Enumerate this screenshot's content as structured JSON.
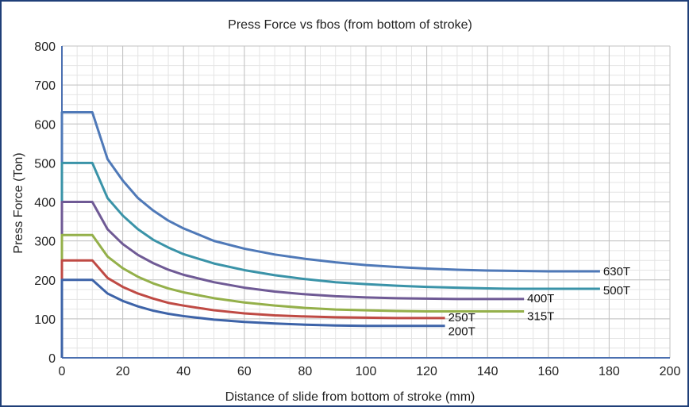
{
  "chart_data": {
    "type": "line",
    "title": "Press Force vs fbos (from bottom of stroke)",
    "xlabel": "Distance of slide from bottom of stroke (mm)",
    "ylabel": "Press Force (Ton)",
    "xlim": [
      0,
      200
    ],
    "ylim": [
      0,
      800
    ],
    "xticks": [
      0,
      20,
      40,
      60,
      80,
      100,
      120,
      140,
      160,
      180,
      200
    ],
    "yticks": [
      0,
      100,
      200,
      300,
      400,
      500,
      600,
      700,
      800
    ],
    "grid": true,
    "legend": "inline-end-labels",
    "series": [
      {
        "name": "630T",
        "color": "#4f79b8",
        "x": [
          0,
          10,
          15,
          20,
          25,
          30,
          35,
          40,
          50,
          60,
          70,
          80,
          90,
          100,
          110,
          120,
          130,
          140,
          150,
          160,
          170,
          177
        ],
        "y": [
          630,
          630,
          510,
          455,
          410,
          378,
          352,
          332,
          300,
          280,
          265,
          254,
          245,
          238,
          233,
          229,
          226,
          224,
          223,
          222,
          222,
          222
        ]
      },
      {
        "name": "500T",
        "color": "#3a93a8",
        "x": [
          0,
          10,
          15,
          20,
          25,
          30,
          35,
          40,
          50,
          60,
          70,
          80,
          90,
          100,
          110,
          120,
          130,
          140,
          150,
          160,
          170,
          177
        ],
        "y": [
          500,
          500,
          410,
          365,
          330,
          303,
          283,
          266,
          242,
          225,
          212,
          202,
          194,
          189,
          185,
          182,
          180,
          178,
          177,
          177,
          177,
          177
        ]
      },
      {
        "name": "400T",
        "color": "#6f5a95",
        "x": [
          0,
          10,
          15,
          20,
          25,
          30,
          35,
          40,
          50,
          60,
          70,
          80,
          90,
          100,
          110,
          120,
          130,
          140,
          152
        ],
        "y": [
          400,
          400,
          330,
          292,
          264,
          243,
          226,
          213,
          194,
          180,
          170,
          163,
          158,
          155,
          153,
          152,
          151,
          151,
          151
        ]
      },
      {
        "name": "315T",
        "color": "#94b04a",
        "x": [
          0,
          10,
          15,
          20,
          25,
          30,
          35,
          40,
          50,
          60,
          70,
          80,
          90,
          100,
          110,
          120,
          130,
          140,
          152
        ],
        "y": [
          315,
          315,
          260,
          230,
          208,
          191,
          178,
          168,
          153,
          142,
          134,
          128,
          124,
          122,
          120,
          119,
          119,
          119,
          119
        ]
      },
      {
        "name": "250T",
        "color": "#bf4a44",
        "x": [
          0,
          10,
          15,
          20,
          25,
          30,
          35,
          40,
          50,
          60,
          70,
          80,
          90,
          100,
          110,
          120,
          126
        ],
        "y": [
          250,
          250,
          205,
          182,
          165,
          152,
          141,
          134,
          122,
          114,
          109,
          106,
          104,
          103,
          102,
          102,
          102
        ]
      },
      {
        "name": "200T",
        "color": "#3d63a8",
        "x": [
          0,
          10,
          15,
          20,
          25,
          30,
          35,
          40,
          50,
          60,
          70,
          80,
          90,
          100,
          110,
          120,
          126
        ],
        "y": [
          200,
          200,
          165,
          146,
          132,
          121,
          113,
          107,
          98,
          92,
          88,
          85,
          83,
          82,
          82,
          82,
          82
        ]
      }
    ]
  }
}
